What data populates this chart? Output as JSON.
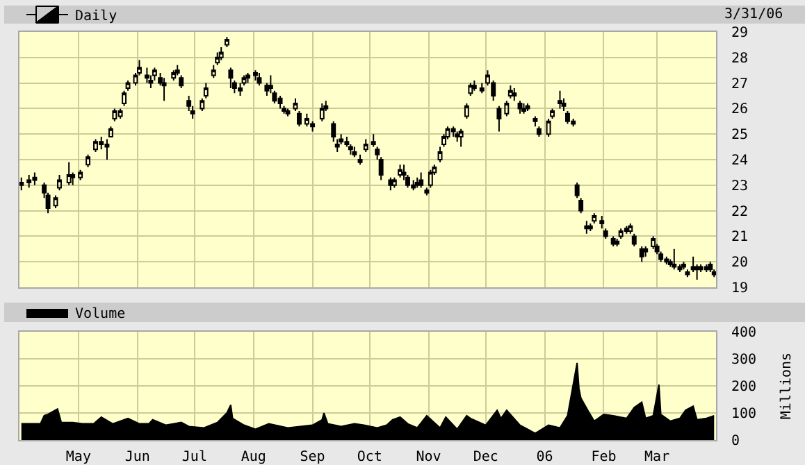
{
  "chart_data": [
    {
      "type": "candlestick",
      "legend": "top left",
      "grid": true,
      "tick_labels": "y",
      "annotations": [
        "3/31/06"
      ],
      "xlim": [
        "2005-03-31",
        "2006-04-01"
      ],
      "xticks": [
        {
          "value": "2005-05-01",
          "label": null
        },
        {
          "value": "2005-06-01",
          "label": null
        },
        {
          "value": "2005-07-01",
          "label": null
        },
        {
          "value": "2005-08-01",
          "label": null
        },
        {
          "value": "2005-09-01",
          "label": null
        },
        {
          "value": "2005-10-01",
          "label": null
        },
        {
          "value": "2005-11-01",
          "label": null
        },
        {
          "value": "2005-12-01",
          "label": null
        },
        {
          "value": "2006-01-01",
          "label": null
        },
        {
          "value": "2006-02-01",
          "label": null
        },
        {
          "value": "2006-03-01",
          "label": null
        }
      ],
      "ylim": [
        19,
        29
      ],
      "yticks": [
        19,
        20,
        21,
        22,
        23,
        24,
        25,
        26,
        27,
        28,
        29
      ],
      "x": [
        "2005-04-01",
        "2005-04-05",
        "2005-04-08",
        "2005-04-13",
        "2005-04-15",
        "2005-04-19",
        "2005-04-21",
        "2005-04-26",
        "2005-04-28",
        "2005-05-02",
        "2005-05-06",
        "2005-05-10",
        "2005-05-13",
        "2005-05-16",
        "2005-05-18",
        "2005-05-20",
        "2005-05-23",
        "2005-05-25",
        "2005-05-27",
        "2005-05-31",
        "2005-06-02",
        "2005-06-06",
        "2005-06-08",
        "2005-06-10",
        "2005-06-13",
        "2005-06-15",
        "2005-06-20",
        "2005-06-22",
        "2005-06-24",
        "2005-06-28",
        "2005-06-30",
        "2005-07-05",
        "2005-07-07",
        "2005-07-11",
        "2005-07-13",
        "2005-07-15",
        "2005-07-18",
        "2005-07-20",
        "2005-07-22",
        "2005-07-25",
        "2005-07-27",
        "2005-07-29",
        "2005-08-02",
        "2005-08-04",
        "2005-08-08",
        "2005-08-10",
        "2005-08-12",
        "2005-08-15",
        "2005-08-17",
        "2005-08-19",
        "2005-08-23",
        "2005-08-25",
        "2005-08-29",
        "2005-09-01",
        "2005-09-06",
        "2005-09-08",
        "2005-09-12",
        "2005-09-14",
        "2005-09-16",
        "2005-09-19",
        "2005-09-21",
        "2005-09-23",
        "2005-09-26",
        "2005-09-29",
        "2005-10-03",
        "2005-10-05",
        "2005-10-07",
        "2005-10-12",
        "2005-10-14",
        "2005-10-17",
        "2005-10-19",
        "2005-10-21",
        "2005-10-24",
        "2005-10-26",
        "2005-10-28",
        "2005-10-31",
        "2005-11-02",
        "2005-11-04",
        "2005-11-07",
        "2005-11-09",
        "2005-11-11",
        "2005-11-14",
        "2005-11-16",
        "2005-11-18",
        "2005-11-21",
        "2005-11-23",
        "2005-11-25",
        "2005-11-29",
        "2005-12-02",
        "2005-12-05",
        "2005-12-08",
        "2005-12-12",
        "2005-12-14",
        "2005-12-16",
        "2005-12-19",
        "2005-12-21",
        "2005-12-23",
        "2005-12-27",
        "2005-12-29",
        "2006-01-03",
        "2006-01-05",
        "2006-01-09",
        "2006-01-11",
        "2006-01-13",
        "2006-01-16",
        "2006-01-18",
        "2006-01-20",
        "2006-01-23",
        "2006-01-25",
        "2006-01-27",
        "2006-01-31",
        "2006-02-02",
        "2006-02-06",
        "2006-02-08",
        "2006-02-10",
        "2006-02-13",
        "2006-02-15",
        "2006-02-17",
        "2006-02-21",
        "2006-02-23",
        "2006-02-27",
        "2006-03-01",
        "2006-03-03",
        "2006-03-06",
        "2006-03-08",
        "2006-03-10",
        "2006-03-13",
        "2006-03-15",
        "2006-03-17",
        "2006-03-20",
        "2006-03-22",
        "2006-03-24",
        "2006-03-27",
        "2006-03-29",
        "2006-03-31"
      ],
      "series": [
        {
          "name": "Daily",
          "color": "#000000",
          "ohlc": [
            [
              23.0,
              23.3,
              22.8,
              23.1
            ],
            [
              23.1,
              23.4,
              22.9,
              23.2
            ],
            [
              23.2,
              23.5,
              23.0,
              23.3
            ],
            [
              23.0,
              23.1,
              22.5,
              22.7
            ],
            [
              22.6,
              22.7,
              21.9,
              22.1
            ],
            [
              22.2,
              22.6,
              22.1,
              22.5
            ],
            [
              22.9,
              23.4,
              22.8,
              23.2
            ],
            [
              23.1,
              23.9,
              23.0,
              23.4
            ],
            [
              23.3,
              23.5,
              23.0,
              23.4
            ],
            [
              23.3,
              23.6,
              23.2,
              23.5
            ],
            [
              23.8,
              24.2,
              23.7,
              24.1
            ],
            [
              24.4,
              24.8,
              24.3,
              24.7
            ],
            [
              24.6,
              24.9,
              24.4,
              24.7
            ],
            [
              24.6,
              24.8,
              24.0,
              24.5
            ],
            [
              24.9,
              25.3,
              24.9,
              25.2
            ],
            [
              25.6,
              26.0,
              25.5,
              25.9
            ],
            [
              25.7,
              26.0,
              25.6,
              25.9
            ],
            [
              26.2,
              26.7,
              26.1,
              26.6
            ],
            [
              26.8,
              27.1,
              26.7,
              27.0
            ],
            [
              27.0,
              27.4,
              26.9,
              27.3
            ],
            [
              27.4,
              27.9,
              27.3,
              27.6
            ],
            [
              27.3,
              27.6,
              27.0,
              27.2
            ],
            [
              27.0,
              27.3,
              26.8,
              27.1
            ],
            [
              27.3,
              27.6,
              27.1,
              27.5
            ],
            [
              27.2,
              27.4,
              26.9,
              27.0
            ],
            [
              27.0,
              27.2,
              26.3,
              26.9
            ],
            [
              27.2,
              27.5,
              27.1,
              27.4
            ],
            [
              27.4,
              27.7,
              27.3,
              27.5
            ],
            [
              27.2,
              27.3,
              26.8,
              26.9
            ],
            [
              26.3,
              26.5,
              25.9,
              26.1
            ],
            [
              25.9,
              26.1,
              25.6,
              25.8
            ],
            [
              26.0,
              26.4,
              25.9,
              26.3
            ],
            [
              26.5,
              27.0,
              26.4,
              26.8
            ],
            [
              27.3,
              27.7,
              27.2,
              27.5
            ],
            [
              27.8,
              28.2,
              27.7,
              28.0
            ],
            [
              28.0,
              28.4,
              27.9,
              28.2
            ],
            [
              28.5,
              28.8,
              28.4,
              28.7
            ],
            [
              27.5,
              27.6,
              26.8,
              27.2
            ],
            [
              27.0,
              27.1,
              26.6,
              26.8
            ],
            [
              26.8,
              27.0,
              26.5,
              26.7
            ],
            [
              27.0,
              27.3,
              26.9,
              27.2
            ],
            [
              27.2,
              27.4,
              27.0,
              27.3
            ],
            [
              27.3,
              27.5,
              27.1,
              27.4
            ],
            [
              27.2,
              27.4,
              26.9,
              27.0
            ],
            [
              26.9,
              27.0,
              26.5,
              26.7
            ],
            [
              26.8,
              27.3,
              26.6,
              26.9
            ],
            [
              26.6,
              26.7,
              26.2,
              26.3
            ],
            [
              26.4,
              26.5,
              26.0,
              26.2
            ],
            [
              26.0,
              26.1,
              25.8,
              25.9
            ],
            [
              25.9,
              26.0,
              25.7,
              25.8
            ],
            [
              26.0,
              26.4,
              25.9,
              26.2
            ],
            [
              25.8,
              25.9,
              25.3,
              25.4
            ],
            [
              25.4,
              25.8,
              25.3,
              25.6
            ],
            [
              25.4,
              25.5,
              25.1,
              25.3
            ],
            [
              25.6,
              26.2,
              25.5,
              26.0
            ],
            [
              26.0,
              26.3,
              25.9,
              26.1
            ],
            [
              25.4,
              25.5,
              24.7,
              24.9
            ],
            [
              24.6,
              24.8,
              24.3,
              24.5
            ],
            [
              24.7,
              25.0,
              24.6,
              24.8
            ],
            [
              24.7,
              24.9,
              24.5,
              24.6
            ],
            [
              24.5,
              24.6,
              24.2,
              24.4
            ],
            [
              24.3,
              24.5,
              24.1,
              24.2
            ],
            [
              24.0,
              24.2,
              23.8,
              23.9
            ],
            [
              24.4,
              24.8,
              24.3,
              24.6
            ],
            [
              24.6,
              25.0,
              24.5,
              24.7
            ],
            [
              24.4,
              24.5,
              24.0,
              24.2
            ],
            [
              24.0,
              24.1,
              23.2,
              23.4
            ],
            [
              23.2,
              23.3,
              22.8,
              23.0
            ],
            [
              23.0,
              23.3,
              22.9,
              23.2
            ],
            [
              23.4,
              23.8,
              23.3,
              23.6
            ],
            [
              23.5,
              23.8,
              23.2,
              23.4
            ],
            [
              23.3,
              23.4,
              22.9,
              23.0
            ],
            [
              23.0,
              23.2,
              22.8,
              22.9
            ],
            [
              23.0,
              23.3,
              22.9,
              23.1
            ],
            [
              23.2,
              23.5,
              22.9,
              23.0
            ],
            [
              22.7,
              22.9,
              22.6,
              22.8
            ],
            [
              23.0,
              23.6,
              22.9,
              23.5
            ],
            [
              23.5,
              23.8,
              23.4,
              23.7
            ],
            [
              24.0,
              24.5,
              23.9,
              24.3
            ],
            [
              24.6,
              25.0,
              24.5,
              24.9
            ],
            [
              24.9,
              25.3,
              24.8,
              25.2
            ],
            [
              25.1,
              25.3,
              24.9,
              25.2
            ],
            [
              25.0,
              25.1,
              24.7,
              24.9
            ],
            [
              24.9,
              25.2,
              24.5,
              25.1
            ],
            [
              25.7,
              26.2,
              25.6,
              26.1
            ],
            [
              26.6,
              27.0,
              26.5,
              26.9
            ],
            [
              26.8,
              27.1,
              26.7,
              26.9
            ],
            [
              26.7,
              27.0,
              26.6,
              26.8
            ],
            [
              27.0,
              27.5,
              26.9,
              27.3
            ],
            [
              27.0,
              27.1,
              26.3,
              26.5
            ],
            [
              26.0,
              26.1,
              25.1,
              25.6
            ],
            [
              25.8,
              26.3,
              25.7,
              26.2
            ],
            [
              26.5,
              26.9,
              26.4,
              26.7
            ],
            [
              26.6,
              26.8,
              26.3,
              26.5
            ],
            [
              26.2,
              26.3,
              25.8,
              26.0
            ],
            [
              25.9,
              26.2,
              25.8,
              26.0
            ],
            [
              26.0,
              26.2,
              25.9,
              26.1
            ],
            [
              25.6,
              25.7,
              25.3,
              25.5
            ],
            [
              25.2,
              25.3,
              24.9,
              25.0
            ],
            [
              25.0,
              25.6,
              24.9,
              25.5
            ],
            [
              25.7,
              26.0,
              25.6,
              25.9
            ],
            [
              26.3,
              26.7,
              26.0,
              26.2
            ],
            [
              26.2,
              26.4,
              25.9,
              26.1
            ],
            [
              25.8,
              25.9,
              25.4,
              25.5
            ],
            [
              25.5,
              25.6,
              25.3,
              25.4
            ],
            [
              23.0,
              23.1,
              22.5,
              22.6
            ],
            [
              22.4,
              22.5,
              21.9,
              22.0
            ],
            [
              21.4,
              21.6,
              21.1,
              21.3
            ],
            [
              21.3,
              21.5,
              21.2,
              21.4
            ],
            [
              21.6,
              21.9,
              21.5,
              21.8
            ],
            [
              21.6,
              21.8,
              21.3,
              21.5
            ],
            [
              21.2,
              21.3,
              20.9,
              21.0
            ],
            [
              20.9,
              21.0,
              20.6,
              20.7
            ],
            [
              20.7,
              20.9,
              20.6,
              20.8
            ],
            [
              21.0,
              21.3,
              20.9,
              21.2
            ],
            [
              21.2,
              21.4,
              21.1,
              21.3
            ],
            [
              21.2,
              21.5,
              21.1,
              21.4
            ],
            [
              21.0,
              21.1,
              20.6,
              20.7
            ],
            [
              20.5,
              20.6,
              20.0,
              20.2
            ],
            [
              20.4,
              20.6,
              20.2,
              20.5
            ],
            [
              20.6,
              21.0,
              20.5,
              20.9
            ],
            [
              20.6,
              20.7,
              20.3,
              20.4
            ],
            [
              20.3,
              20.4,
              20.0,
              20.1
            ],
            [
              20.1,
              20.2,
              19.9,
              20.0
            ],
            [
              20.0,
              20.1,
              19.8,
              19.9
            ],
            [
              19.8,
              20.5,
              19.7,
              19.9
            ],
            [
              19.8,
              19.9,
              19.6,
              19.7
            ],
            [
              19.8,
              20.0,
              19.7,
              19.9
            ],
            [
              19.6,
              19.7,
              19.4,
              19.5
            ],
            [
              19.7,
              20.2,
              19.6,
              19.8
            ],
            [
              19.8,
              19.9,
              19.3,
              19.7
            ],
            [
              19.7,
              19.9,
              19.6,
              19.8
            ],
            [
              19.7,
              19.9,
              19.6,
              19.8
            ],
            [
              19.9,
              20.0,
              19.6,
              19.7
            ],
            [
              19.6,
              19.7,
              19.4,
              19.5
            ]
          ]
        }
      ]
    },
    {
      "type": "area",
      "legend": "top left",
      "grid": true,
      "ylabel": "Millions",
      "xlim": [
        "2005-03-31",
        "2006-04-01"
      ],
      "xticks": [
        {
          "value": "2005-05-01",
          "label": "May"
        },
        {
          "value": "2005-06-01",
          "label": "Jun"
        },
        {
          "value": "2005-07-01",
          "label": "Jul"
        },
        {
          "value": "2005-08-01",
          "label": "Aug"
        },
        {
          "value": "2005-09-01",
          "label": "Sep"
        },
        {
          "value": "2005-10-01",
          "label": "Oct"
        },
        {
          "value": "2005-11-01",
          "label": "Nov"
        },
        {
          "value": "2005-12-01",
          "label": "Dec"
        },
        {
          "value": "2006-01-01",
          "label": "06"
        },
        {
          "value": "2006-02-01",
          "label": "Feb"
        },
        {
          "value": "2006-03-01",
          "label": "Mar"
        }
      ],
      "ylim": [
        0,
        400
      ],
      "yticks": [
        0,
        100,
        200,
        300,
        400
      ],
      "x": [
        "2005-04-01",
        "2005-04-05",
        "2005-04-11",
        "2005-04-13",
        "2005-04-15",
        "2005-04-20",
        "2005-04-22",
        "2005-04-28",
        "2005-05-03",
        "2005-05-09",
        "2005-05-13",
        "2005-05-19",
        "2005-05-27",
        "2005-06-02",
        "2005-06-07",
        "2005-06-09",
        "2005-06-16",
        "2005-06-24",
        "2005-06-28",
        "2005-07-06",
        "2005-07-13",
        "2005-07-18",
        "2005-07-20",
        "2005-07-21",
        "2005-07-27",
        "2005-08-02",
        "2005-08-09",
        "2005-08-19",
        "2005-09-01",
        "2005-09-06",
        "2005-09-07",
        "2005-09-09",
        "2005-09-16",
        "2005-09-23",
        "2005-09-28",
        "2005-10-05",
        "2005-10-10",
        "2005-10-13",
        "2005-10-17",
        "2005-10-21",
        "2005-10-26",
        "2005-10-31",
        "2005-11-07",
        "2005-11-10",
        "2005-11-16",
        "2005-11-21",
        "2005-11-23",
        "2005-12-01",
        "2005-12-07",
        "2005-12-09",
        "2005-12-12",
        "2005-12-19",
        "2005-12-27",
        "2006-01-03",
        "2006-01-09",
        "2006-01-13",
        "2006-01-18",
        "2006-01-19",
        "2006-01-20",
        "2006-01-24",
        "2006-01-27",
        "2006-02-01",
        "2006-02-06",
        "2006-02-13",
        "2006-02-17",
        "2006-02-21",
        "2006-02-23",
        "2006-02-27",
        "2006-03-02",
        "2006-03-03",
        "2006-03-08",
        "2006-03-13",
        "2006-03-16",
        "2006-03-20",
        "2006-03-22",
        "2006-03-27",
        "2006-03-31"
      ],
      "series": [
        {
          "name": "Volume",
          "color": "#000000",
          "values": [
            60,
            60,
            60,
            90,
            95,
            115,
            65,
            65,
            60,
            60,
            85,
            60,
            80,
            60,
            60,
            75,
            55,
            65,
            50,
            45,
            65,
            100,
            130,
            80,
            55,
            40,
            60,
            45,
            55,
            75,
            100,
            60,
            50,
            60,
            55,
            45,
            55,
            75,
            85,
            60,
            45,
            90,
            45,
            85,
            40,
            90,
            80,
            55,
            110,
            80,
            110,
            55,
            25,
            55,
            45,
            90,
            285,
            190,
            155,
            105,
            70,
            95,
            90,
            80,
            120,
            140,
            80,
            90,
            205,
            95,
            70,
            80,
            110,
            125,
            75,
            80,
            90
          ]
        }
      ]
    }
  ]
}
